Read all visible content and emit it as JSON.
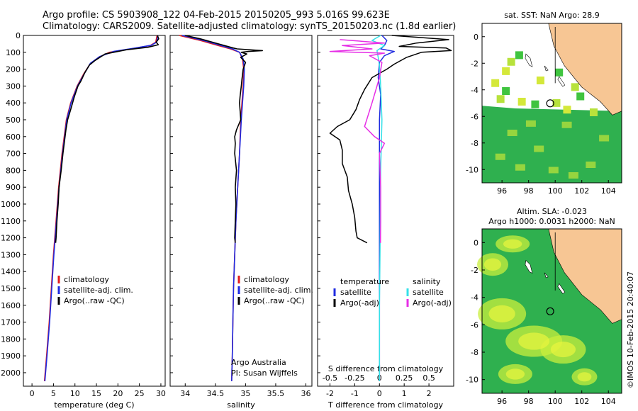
{
  "header": {
    "line1": "Argo profile: CS 5903908_122 04-Feb-2015 20150205_993 5.016S 99.623E",
    "line2": "Climatology: CARS2009. Satellite-adjusted climatology: synTS_20150203.nc (1.8d earlier)"
  },
  "side_credit": "©IMOS 10-Feb-2015 20:40:07",
  "colors": {
    "climatology": "#e31a1c",
    "satellite": "#1f2be0",
    "argo": "#000000",
    "sat_salinity": "#34e0e8",
    "argo_adj_salinity": "#e62ee6",
    "land": "#f7c694",
    "ocean": "#2fb04f"
  },
  "chart_data": [
    {
      "type": "line",
      "id": "temperature",
      "xlabel": "temperature (deg C)",
      "xlim": [
        -2,
        31
      ],
      "ylim": [
        2080,
        0
      ],
      "yticks": [
        0,
        100,
        200,
        300,
        400,
        500,
        600,
        700,
        800,
        900,
        1000,
        1100,
        1200,
        1300,
        1400,
        1500,
        1600,
        1700,
        1800,
        1900,
        2000
      ],
      "xticks": [
        0,
        5,
        10,
        15,
        20,
        25,
        30
      ],
      "legend": [
        "climatology",
        "satellite-adj. clim.",
        "Argo(..raw -QC)"
      ],
      "series": [
        {
          "name": "climatology",
          "color": "#e31a1c",
          "points": [
            [
              29.1,
              0
            ],
            [
              28.8,
              40
            ],
            [
              27.5,
              60
            ],
            [
              23,
              80
            ],
            [
              18,
              100
            ],
            [
              15.5,
              130
            ],
            [
              13.5,
              170
            ],
            [
              12,
              230
            ],
            [
              10.5,
              300
            ],
            [
              9,
              400
            ],
            [
              8,
              500
            ],
            [
              7,
              700
            ],
            [
              6.2,
              900
            ],
            [
              5.6,
              1100
            ],
            [
              5,
              1300
            ],
            [
              4.5,
              1500
            ],
            [
              4,
              1700
            ],
            [
              3.4,
              1900
            ],
            [
              2.9,
              2050
            ]
          ]
        },
        {
          "name": "satellite-adj. clim.",
          "color": "#1f2be0",
          "points": [
            [
              29.3,
              0
            ],
            [
              29,
              40
            ],
            [
              27.8,
              58
            ],
            [
              24,
              75
            ],
            [
              19,
              95
            ],
            [
              15.8,
              125
            ],
            [
              13.6,
              165
            ],
            [
              12.1,
              230
            ],
            [
              10.6,
              300
            ],
            [
              9.1,
              400
            ],
            [
              8.1,
              500
            ],
            [
              7.1,
              700
            ],
            [
              6.3,
              900
            ],
            [
              5.7,
              1100
            ],
            [
              5.1,
              1300
            ],
            [
              4.6,
              1500
            ],
            [
              4.1,
              1700
            ],
            [
              3.5,
              1900
            ],
            [
              3,
              2050
            ]
          ]
        },
        {
          "name": "Argo(..raw -QC)",
          "color": "#000000",
          "points": [
            [
              29.2,
              0
            ],
            [
              29.5,
              20
            ],
            [
              28.9,
              40
            ],
            [
              29.4,
              55
            ],
            [
              27,
              70
            ],
            [
              22,
              85
            ],
            [
              17,
              110
            ],
            [
              14.6,
              150
            ],
            [
              13.4,
              175
            ],
            [
              12.3,
              220
            ],
            [
              11.4,
              270
            ],
            [
              10.7,
              300
            ],
            [
              9.9,
              360
            ],
            [
              9,
              440
            ],
            [
              8.3,
              500
            ],
            [
              7.9,
              560
            ],
            [
              7.5,
              640
            ],
            [
              7.2,
              700
            ],
            [
              6.8,
              800
            ],
            [
              6.3,
              900
            ],
            [
              6.1,
              1000
            ],
            [
              5.8,
              1100
            ],
            [
              5.6,
              1200
            ],
            [
              5.5,
              1230
            ]
          ]
        }
      ]
    },
    {
      "type": "line",
      "id": "salinity",
      "xlabel": "salinity",
      "xlim": [
        33.75,
        36.1
      ],
      "ylim": [
        2080,
        0
      ],
      "xticks": [
        34,
        34.5,
        35,
        35.5,
        36
      ],
      "legend": [
        "climatology",
        "satellite-adj. clim.",
        "Argo(..raw -QC)"
      ],
      "annotation": [
        "Argo Australia",
        "PI: Susan Wijffels"
      ],
      "series": [
        {
          "name": "climatology",
          "color": "#e31a1c",
          "points": [
            [
              33.9,
              0
            ],
            [
              34.25,
              30
            ],
            [
              34.55,
              60
            ],
            [
              34.75,
              80
            ],
            [
              34.9,
              100
            ],
            [
              34.95,
              140
            ],
            [
              34.97,
              200
            ],
            [
              34.96,
              300
            ],
            [
              34.94,
              400
            ],
            [
              34.92,
              500
            ],
            [
              34.9,
              700
            ],
            [
              34.87,
              900
            ],
            [
              34.84,
              1100
            ],
            [
              34.82,
              1300
            ],
            [
              34.8,
              1500
            ],
            [
              34.79,
              1700
            ],
            [
              34.78,
              1900
            ],
            [
              34.77,
              2050
            ]
          ]
        },
        {
          "name": "satellite-adj. clim.",
          "color": "#1f2be0",
          "points": [
            [
              33.95,
              0
            ],
            [
              34.3,
              30
            ],
            [
              34.6,
              60
            ],
            [
              34.78,
              80
            ],
            [
              34.9,
              100
            ],
            [
              34.96,
              140
            ],
            [
              34.98,
              200
            ],
            [
              34.97,
              300
            ],
            [
              34.95,
              400
            ],
            [
              34.93,
              500
            ],
            [
              34.9,
              700
            ],
            [
              34.87,
              900
            ],
            [
              34.84,
              1100
            ],
            [
              34.82,
              1300
            ],
            [
              34.8,
              1500
            ],
            [
              34.79,
              1700
            ],
            [
              34.78,
              1900
            ],
            [
              34.77,
              2050
            ]
          ]
        },
        {
          "name": "Argo(..raw -QC)",
          "color": "#000000",
          "points": [
            [
              34.0,
              0
            ],
            [
              34.25,
              20
            ],
            [
              34.55,
              50
            ],
            [
              34.8,
              75
            ],
            [
              34.86,
              80
            ],
            [
              35.28,
              90
            ],
            [
              35.05,
              95
            ],
            [
              34.93,
              100
            ],
            [
              35.02,
              110
            ],
            [
              34.92,
              130
            ],
            [
              35.0,
              160
            ],
            [
              34.96,
              200
            ],
            [
              34.94,
              260
            ],
            [
              34.93,
              300
            ],
            [
              34.91,
              360
            ],
            [
              34.9,
              400
            ],
            [
              34.92,
              500
            ],
            [
              34.85,
              560
            ],
            [
              34.82,
              600
            ],
            [
              34.83,
              640
            ],
            [
              34.82,
              700
            ],
            [
              34.85,
              800
            ],
            [
              34.83,
              900
            ],
            [
              34.84,
              1000
            ],
            [
              34.83,
              1100
            ],
            [
              34.82,
              1200
            ],
            [
              34.83,
              1230
            ]
          ]
        }
      ]
    },
    {
      "type": "line",
      "id": "difference",
      "xlabel": "T difference from climatology",
      "xlabel_top": "S difference from climatology",
      "xlim": [
        -2.5,
        3
      ],
      "ylim": [
        2080,
        0
      ],
      "xticks": [
        -2,
        -1,
        0,
        1,
        2
      ],
      "xticks_top": [
        "-0.5",
        "-0.25",
        "0",
        "0.25",
        "0.5"
      ],
      "legend_temperature": {
        "title": "temperature",
        "items": [
          "satellite",
          "Argo(-adj)"
        ]
      },
      "legend_salinity": {
        "title": "salinity",
        "items": [
          "satellite",
          "Argo(-adj)"
        ]
      },
      "series": [
        {
          "name": "satellite",
          "color": "#1f2be0",
          "points": [
            [
              0.1,
              0
            ],
            [
              0.3,
              30
            ],
            [
              0.2,
              60
            ],
            [
              0.05,
              80
            ],
            [
              0.6,
              95
            ],
            [
              0.2,
              120
            ],
            [
              0.0,
              160
            ],
            [
              -0.05,
              250
            ],
            [
              0.05,
              350
            ],
            [
              0,
              500
            ],
            [
              0,
              800
            ],
            [
              0,
              1200
            ],
            [
              0,
              1600
            ],
            [
              0,
              2050
            ]
          ]
        },
        {
          "name": "Argo(-adj)",
          "color": "#000000",
          "points": [
            [
              0.5,
              0
            ],
            [
              2.8,
              25
            ],
            [
              1.5,
              45
            ],
            [
              0.8,
              65
            ],
            [
              2.7,
              75
            ],
            [
              2.9,
              90
            ],
            [
              1.7,
              100
            ],
            [
              1.1,
              130
            ],
            [
              0.6,
              170
            ],
            [
              0.3,
              200
            ],
            [
              -0.3,
              250
            ],
            [
              -0.6,
              320
            ],
            [
              -0.8,
              380
            ],
            [
              -0.95,
              440
            ],
            [
              -1.2,
              500
            ],
            [
              -1.7,
              540
            ],
            [
              -2.0,
              580
            ],
            [
              -1.6,
              620
            ],
            [
              -1.5,
              680
            ],
            [
              -1.5,
              760
            ],
            [
              -1.3,
              840
            ],
            [
              -1.25,
              920
            ],
            [
              -1.1,
              1000
            ],
            [
              -1.0,
              1080
            ],
            [
              -0.95,
              1160
            ],
            [
              -0.9,
              1200
            ],
            [
              -0.5,
              1230
            ]
          ]
        },
        {
          "name": "satellite (salinity)",
          "color": "#34e0e8",
          "points": [
            [
              0.05,
              0
            ],
            [
              -0.3,
              30
            ],
            [
              0.2,
              60
            ],
            [
              -0.1,
              90
            ],
            [
              -0.05,
              130
            ],
            [
              0.0,
              180
            ],
            [
              0.05,
              300
            ],
            [
              0.1,
              500
            ],
            [
              0.05,
              800
            ],
            [
              0.03,
              1200
            ],
            [
              0,
              1600
            ],
            [
              0,
              2050
            ]
          ]
        },
        {
          "name": "Argo(-adj) (salinity)",
          "color": "#e62ee6",
          "points": [
            [
              -1.6,
              25
            ],
            [
              0.2,
              45
            ],
            [
              -1.5,
              60
            ],
            [
              -0.3,
              80
            ],
            [
              -2.0,
              95
            ],
            [
              0.2,
              105
            ],
            [
              -0.4,
              120
            ],
            [
              0.1,
              160
            ],
            [
              0.0,
              250
            ],
            [
              -0.3,
              400
            ],
            [
              -0.6,
              540
            ],
            [
              -0.2,
              600
            ],
            [
              0.2,
              640
            ],
            [
              0.0,
              700
            ],
            [
              0.05,
              900
            ],
            [
              0.05,
              1100
            ],
            [
              0.04,
              1230
            ]
          ]
        }
      ]
    },
    {
      "type": "heatmap",
      "id": "sst-map",
      "title": "sat. SST: NaN Argo: 28.9",
      "xlim": [
        94.5,
        105
      ],
      "ylim": [
        -11,
        1
      ],
      "xticks": [
        96,
        98,
        100,
        102,
        104
      ],
      "yticks": [
        0,
        -2,
        -4,
        -6,
        -8,
        -10
      ],
      "argo_position": {
        "lon": 99.623,
        "lat": -5.016
      }
    },
    {
      "type": "heatmap",
      "id": "sla-map",
      "title_line1": "Altim. SLA: -0.023",
      "title_line2": "Argo h1000: 0.0031 h2000: NaN",
      "xlim": [
        94.5,
        105
      ],
      "ylim": [
        -11,
        1
      ],
      "xticks": [
        96,
        98,
        100,
        102,
        104
      ],
      "yticks": [
        0,
        -2,
        -4,
        -6,
        -8,
        -10
      ],
      "argo_position": {
        "lon": 99.623,
        "lat": -5.016
      }
    }
  ]
}
